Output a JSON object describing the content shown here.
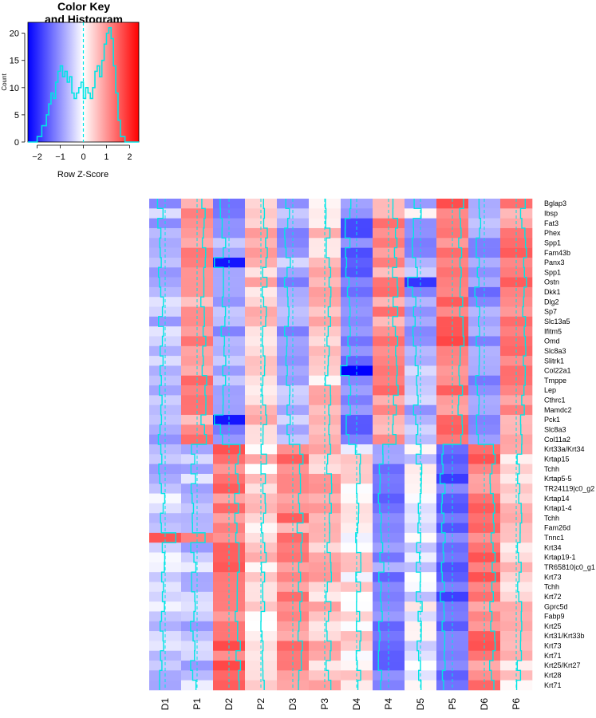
{
  "chart_data": [
    {
      "type": "histogram",
      "title_line1": "Color Key",
      "title_line2": "and Histogram",
      "xlabel": "Row Z-Score",
      "ylabel": "Count",
      "xlim": [
        -2.4,
        2.4
      ],
      "ylim": [
        0,
        22
      ],
      "xticks": [
        -2,
        -1,
        0,
        1,
        2
      ],
      "xtick_labels": [
        "−2",
        "−1",
        "0",
        "1",
        "2"
      ],
      "yticks": [
        0,
        5,
        10,
        15,
        20
      ],
      "ytick_labels": [
        "0",
        "5",
        "10",
        "15",
        "20"
      ],
      "colors": {
        "low": "#0000ff",
        "mid": "#ffffff",
        "high": "#ff0000",
        "trace": "#00e5e5"
      },
      "density_x": [
        -2.4,
        -2.2,
        -2.0,
        -1.8,
        -1.6,
        -1.5,
        -1.4,
        -1.3,
        -1.2,
        -1.1,
        -1.0,
        -0.9,
        -0.8,
        -0.7,
        -0.6,
        -0.5,
        -0.4,
        -0.3,
        -0.2,
        -0.1,
        0.0,
        0.1,
        0.2,
        0.3,
        0.4,
        0.5,
        0.6,
        0.7,
        0.8,
        0.9,
        1.0,
        1.1,
        1.2,
        1.3,
        1.4,
        1.5,
        1.6,
        1.8,
        2.0,
        2.4
      ],
      "density_y": [
        0,
        0,
        1,
        3,
        5,
        7,
        9,
        8,
        11,
        13,
        14,
        12,
        13,
        11,
        12,
        9,
        8,
        9,
        10,
        11,
        8,
        10,
        9,
        8,
        10,
        13,
        14,
        12,
        15,
        18,
        20,
        21,
        19,
        14,
        9,
        4,
        1,
        0,
        0,
        0
      ]
    },
    {
      "type": "heatmap",
      "columns": [
        "D1",
        "P1",
        "D2",
        "P2",
        "D3",
        "P3",
        "D4",
        "P4",
        "D5",
        "P5",
        "D6",
        "P6"
      ],
      "rows": [
        "Bglap3",
        "Ibsp",
        "Fat3",
        "Phex",
        "Spp1",
        "Fam43b",
        "Panx3",
        "Spp1",
        "Ostn",
        "Dkk1",
        "Dlg2",
        "Sp7",
        "Slc13a5",
        "Ifitm5",
        "Omd",
        "Slc8a3",
        "Slitrk1",
        "Col22a1",
        "Tmppe",
        "Lep",
        "Cthrc1",
        "Mamdc2",
        "Pck1",
        "Slc8a3",
        "Col11a2",
        "Krt33a/Krt34",
        "Krtap15",
        "Tchh",
        "Krtap5-5",
        "TR24119|c0_g2",
        "Krtap14",
        "Krtap1-4",
        "Tchh",
        "Fam26d",
        "Tnnc1",
        "Krt34",
        "Krtap19-1",
        "TR65810|c0_g1",
        "Krt73",
        "Tchh",
        "Krt72",
        "Gprc5d",
        "Fabp9",
        "Krt25",
        "Krt31/Krt33b",
        "Krt73",
        "Krt71",
        "Krt25/Krt27",
        "Krt28",
        "Krt71"
      ],
      "column_base_z": [
        [
          -0.7,
          1.0,
          -0.9,
          0.6,
          -0.8,
          0.5,
          -1.3,
          1.0,
          -0.8,
          1.3,
          -1.0,
          1.1
        ],
        [
          -0.5,
          -0.6,
          1.3,
          0.4,
          1.1,
          0.6,
          0.2,
          -1.1,
          -0.2,
          -1.5,
          1.2,
          0.4
        ]
      ],
      "cell_overrides": [
        {
          "row": 6,
          "col": 2,
          "z": -2.2
        },
        {
          "row": 22,
          "col": 2,
          "z": -2.2
        },
        {
          "row": 17,
          "col": 6,
          "z": -2.5
        },
        {
          "row": 34,
          "col": 0,
          "z": 1.6
        },
        {
          "row": 34,
          "col": 1,
          "z": 1.2
        },
        {
          "row": 8,
          "col": 8,
          "z": -1.9
        },
        {
          "row": 1,
          "col": 8,
          "z": 0.1
        }
      ]
    }
  ]
}
